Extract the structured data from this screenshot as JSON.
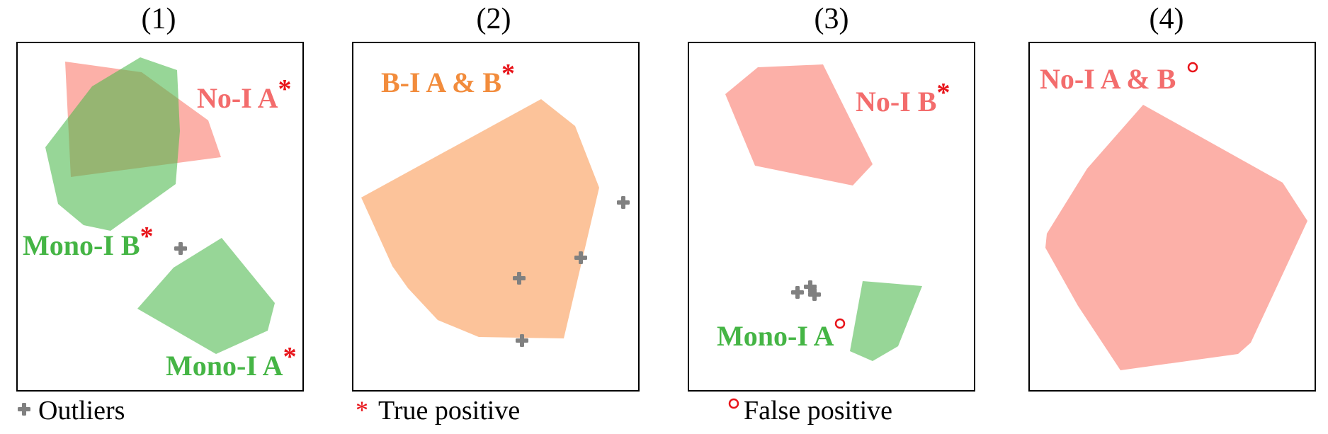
{
  "colors": {
    "no_interaction": "#FA8072",
    "mono_interaction": "#4CB84C",
    "bi_interaction": "#FBA66A",
    "no_label": "#F36C6C",
    "mono_label": "#45B545",
    "bi_label": "#F28C3C",
    "true_marker": "#E8141A",
    "false_marker": "#E8141A",
    "outlier": "#808080"
  },
  "panels": [
    {
      "title": "(1)",
      "labels": [
        {
          "text": "No-I A",
          "marker": "*"
        },
        {
          "text": "Mono-I B",
          "marker": "*"
        },
        {
          "text": "Mono-I A",
          "marker": "*"
        }
      ]
    },
    {
      "title": "(2)",
      "labels": [
        {
          "text": "B-I A & B",
          "marker": "*"
        }
      ]
    },
    {
      "title": "(3)",
      "labels": [
        {
          "text": "No-I B",
          "marker": "*"
        },
        {
          "text": "Mono-I A",
          "marker": "°"
        }
      ]
    },
    {
      "title": "(4)",
      "labels": [
        {
          "text": "No-I A & B",
          "marker": "°"
        }
      ]
    }
  ],
  "legend": {
    "outliers": "Outliers",
    "true_positive": "True positive",
    "false_positive": "False positive",
    "true_marker": "*"
  }
}
